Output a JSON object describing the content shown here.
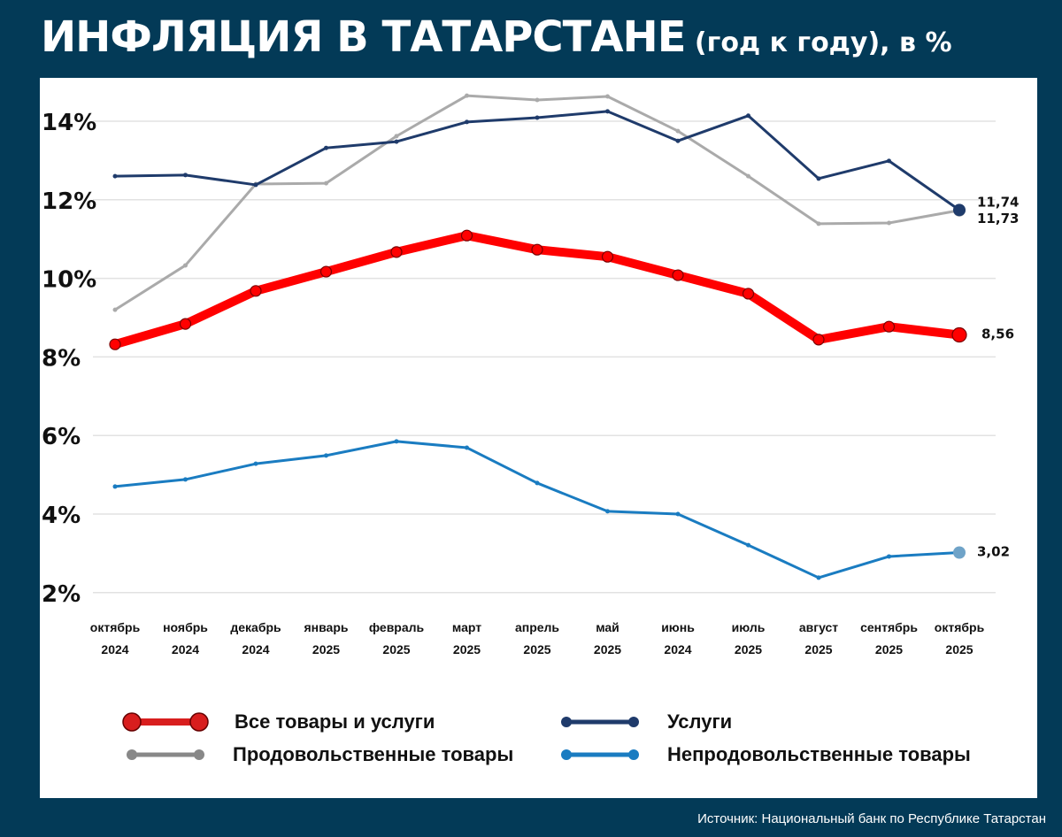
{
  "title": {
    "main": "ИНФЛЯЦИЯ В ТАТАРСТАНЕ",
    "suffix": " (год к году), в %"
  },
  "source": "Источник: Национальный банк по Республике Татарстан",
  "chart_data": {
    "type": "line",
    "title": "ИНФЛЯЦИЯ В ТАТАРСТАНЕ (год к году), в %",
    "categories": [
      [
        "октябрь",
        "2024"
      ],
      [
        "ноябрь",
        "2024"
      ],
      [
        "декабрь",
        "2024"
      ],
      [
        "январь",
        "2025"
      ],
      [
        "февраль",
        "2025"
      ],
      [
        "март",
        "2025"
      ],
      [
        "апрель",
        "2025"
      ],
      [
        "май",
        "2025"
      ],
      [
        "июнь",
        "2024"
      ],
      [
        "июль",
        "2025"
      ],
      [
        "август",
        "2025"
      ],
      [
        "сентябрь",
        "2025"
      ],
      [
        "октябрь",
        "2025"
      ]
    ],
    "ylim": [
      2,
      14.8
    ],
    "yticks": [
      2,
      4,
      6,
      8,
      10,
      12,
      14
    ],
    "ytick_labels": [
      "2%",
      "4%",
      "6%",
      "8%",
      "10%",
      "12%",
      "14%"
    ],
    "grid": true,
    "legend_position": "bottom",
    "series": [
      {
        "name": "Продовольственные товары",
        "color": "#aaaaaa",
        "legend_color": "#888888",
        "width": 3,
        "values": [
          9.2,
          10.33,
          12.4,
          12.42,
          13.62,
          14.65,
          14.54,
          14.63,
          13.75,
          12.6,
          11.39,
          11.41,
          11.73
        ],
        "end_label": "11,73"
      },
      {
        "name": "Услуги",
        "color": "#1f3b6b",
        "width": 3,
        "values": [
          12.6,
          12.63,
          12.38,
          13.32,
          13.48,
          13.98,
          14.09,
          14.25,
          13.5,
          14.14,
          12.54,
          12.99,
          11.74
        ],
        "end_label": "11,74"
      },
      {
        "name": "Непродовольственные товары",
        "color": "#1a7cc1",
        "end_color": "#6fa3c8",
        "width": 3,
        "values": [
          4.7,
          4.88,
          5.28,
          5.49,
          5.85,
          5.69,
          4.79,
          4.07,
          4.0,
          3.21,
          2.38,
          2.92,
          3.02
        ],
        "end_label": "3,02"
      },
      {
        "name": "Все товары и услуги",
        "color": "#ff0000",
        "legend_color": "#d81e1e",
        "width": 10,
        "values": [
          8.32,
          8.84,
          9.68,
          10.17,
          10.67,
          11.09,
          10.73,
          10.55,
          10.08,
          9.61,
          8.44,
          8.77,
          8.56
        ],
        "end_label": "8,56"
      }
    ]
  }
}
